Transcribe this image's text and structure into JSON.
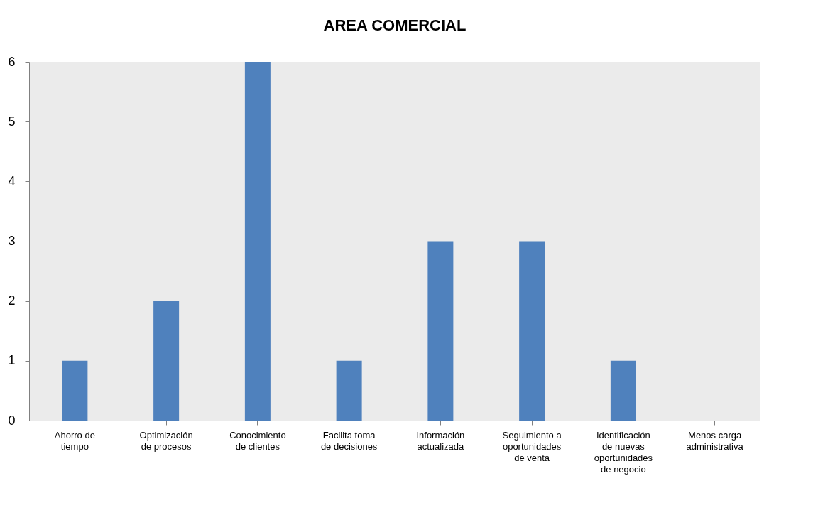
{
  "chart_data": {
    "type": "bar",
    "title": "AREA COMERCIAL",
    "categories": [
      "Ahorro de tiempo",
      "Optimización de procesos",
      "Conocimiento de clientes",
      "Facilita toma de decisiones",
      "Información actualizada",
      "Seguimiento a oportunidades de venta",
      "Identificación de nuevas oportunidades de negocio",
      "Menos carga administrativa"
    ],
    "values": [
      1,
      2,
      6,
      1,
      3,
      3,
      1,
      0
    ],
    "color": "#4f81bd",
    "ylim": [
      0,
      6
    ],
    "yticks": [
      0,
      1,
      2,
      3,
      4,
      5,
      6
    ]
  }
}
